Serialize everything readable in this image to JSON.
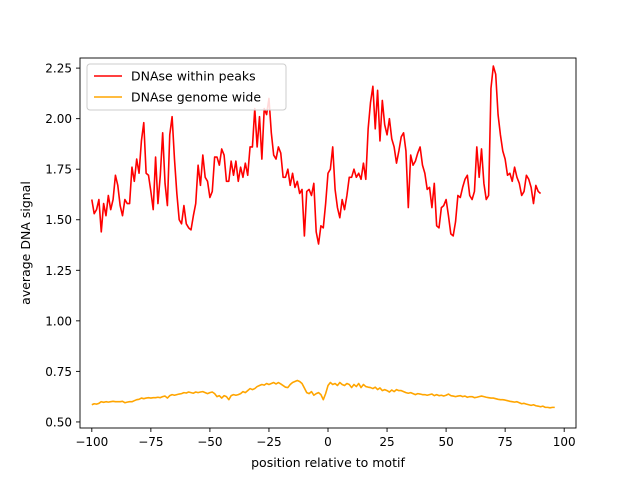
{
  "chart_data": {
    "type": "line",
    "title": "",
    "xlabel": "position relative to motif",
    "ylabel": "average DNA signal",
    "xlim": [
      -105,
      105
    ],
    "ylim": [
      0.47,
      2.3
    ],
    "xticks": [
      -100,
      -75,
      -50,
      -25,
      0,
      25,
      50,
      75,
      100
    ],
    "xtick_labels": [
      "−100",
      "−75",
      "−50",
      "−25",
      "0",
      "25",
      "50",
      "75",
      "100"
    ],
    "yticks": [
      0.5,
      0.75,
      1.0,
      1.25,
      1.5,
      1.75,
      2.0,
      2.25
    ],
    "ytick_labels": [
      "0.50",
      "0.75",
      "1.00",
      "1.25",
      "1.50",
      "1.75",
      "2.00",
      "2.25"
    ],
    "grid": false,
    "legend_position": "upper-left",
    "x_start": -100,
    "x_step": 1,
    "series": [
      {
        "name": "DNAse within peaks",
        "color": "#ff0000",
        "values": [
          1.6,
          1.53,
          1.55,
          1.6,
          1.44,
          1.58,
          1.52,
          1.62,
          1.55,
          1.6,
          1.72,
          1.67,
          1.57,
          1.52,
          1.6,
          1.58,
          1.58,
          1.76,
          1.69,
          1.8,
          1.73,
          1.89,
          1.98,
          1.73,
          1.72,
          1.64,
          1.55,
          1.81,
          1.58,
          1.72,
          1.93,
          1.68,
          1.57,
          1.92,
          2.01,
          1.8,
          1.63,
          1.5,
          1.48,
          1.57,
          1.48,
          1.46,
          1.45,
          1.52,
          1.58,
          1.77,
          1.67,
          1.82,
          1.71,
          1.69,
          1.61,
          1.64,
          1.81,
          1.81,
          1.77,
          1.85,
          1.82,
          1.69,
          1.69,
          1.79,
          1.72,
          1.79,
          1.69,
          1.76,
          1.71,
          1.78,
          1.72,
          1.86,
          1.86,
          2.05,
          1.86,
          2.01,
          1.8,
          2.05,
          2.02,
          2.1,
          1.93,
          1.82,
          1.8,
          1.86,
          1.83,
          1.71,
          1.71,
          1.75,
          1.67,
          1.73,
          1.66,
          1.69,
          1.63,
          1.65,
          1.42,
          1.64,
          1.65,
          1.62,
          1.68,
          1.44,
          1.38,
          1.47,
          1.46,
          1.58,
          1.73,
          1.75,
          1.86,
          1.65,
          1.56,
          1.51,
          1.6,
          1.55,
          1.62,
          1.71,
          1.71,
          1.75,
          1.71,
          1.73,
          1.7,
          1.78,
          1.7,
          1.95,
          2.08,
          2.16,
          1.95,
          2.14,
          1.89,
          2.09,
          1.97,
          1.92,
          2.0,
          1.9,
          1.86,
          1.78,
          1.84,
          1.91,
          1.93,
          1.84,
          1.56,
          1.82,
          1.77,
          1.79,
          1.83,
          1.86,
          1.77,
          1.73,
          1.65,
          1.66,
          1.56,
          1.68,
          1.47,
          1.46,
          1.56,
          1.57,
          1.6,
          1.52,
          1.43,
          1.42,
          1.49,
          1.62,
          1.61,
          1.66,
          1.7,
          1.72,
          1.62,
          1.6,
          1.64,
          1.86,
          1.71,
          1.85,
          1.68,
          1.6,
          1.62,
          2.15,
          2.26,
          2.22,
          2.02,
          1.92,
          1.84,
          1.8,
          1.72,
          1.73,
          1.69,
          1.76,
          1.71,
          1.68,
          1.62,
          1.64,
          1.72,
          1.7,
          1.66,
          1.58,
          1.67,
          1.64,
          1.63
        ]
      },
      {
        "name": "DNAse genome wide",
        "color": "#ffa500",
        "values": [
          0.585,
          0.59,
          0.588,
          0.592,
          0.6,
          0.597,
          0.6,
          0.598,
          0.6,
          0.602,
          0.6,
          0.6,
          0.6,
          0.602,
          0.595,
          0.598,
          0.6,
          0.6,
          0.605,
          0.61,
          0.612,
          0.618,
          0.615,
          0.618,
          0.62,
          0.618,
          0.62,
          0.62,
          0.622,
          0.62,
          0.625,
          0.628,
          0.618,
          0.63,
          0.635,
          0.632,
          0.635,
          0.638,
          0.64,
          0.645,
          0.643,
          0.648,
          0.645,
          0.642,
          0.648,
          0.645,
          0.648,
          0.65,
          0.645,
          0.64,
          0.645,
          0.648,
          0.64,
          0.625,
          0.63,
          0.618,
          0.63,
          0.625,
          0.61,
          0.63,
          0.635,
          0.632,
          0.635,
          0.64,
          0.65,
          0.645,
          0.655,
          0.665,
          0.66,
          0.665,
          0.675,
          0.68,
          0.685,
          0.682,
          0.69,
          0.685,
          0.69,
          0.695,
          0.688,
          0.695,
          0.688,
          0.68,
          0.672,
          0.67,
          0.685,
          0.695,
          0.7,
          0.705,
          0.7,
          0.69,
          0.668,
          0.645,
          0.64,
          0.65,
          0.632,
          0.64,
          0.645,
          0.635,
          0.61,
          0.64,
          0.68,
          0.695,
          0.685,
          0.69,
          0.68,
          0.695,
          0.685,
          0.68,
          0.69,
          0.685,
          0.67,
          0.685,
          0.675,
          0.69,
          0.67,
          0.685,
          0.675,
          0.672,
          0.67,
          0.665,
          0.672,
          0.66,
          0.668,
          0.655,
          0.66,
          0.655,
          0.648,
          0.658,
          0.65,
          0.66,
          0.655,
          0.655,
          0.65,
          0.645,
          0.642,
          0.645,
          0.64,
          0.635,
          0.64,
          0.638,
          0.635,
          0.635,
          0.632,
          0.635,
          0.638,
          0.63,
          0.635,
          0.63,
          0.632,
          0.628,
          0.632,
          0.638,
          0.63,
          0.628,
          0.625,
          0.628,
          0.63,
          0.625,
          0.628,
          0.622,
          0.625,
          0.625,
          0.62,
          0.622,
          0.625,
          0.628,
          0.625,
          0.622,
          0.62,
          0.618,
          0.618,
          0.615,
          0.612,
          0.61,
          0.61,
          0.608,
          0.605,
          0.602,
          0.6,
          0.598,
          0.6,
          0.595,
          0.59,
          0.592,
          0.588,
          0.585,
          0.582,
          0.585,
          0.58,
          0.578,
          0.575,
          0.578,
          0.572,
          0.572,
          0.57,
          0.572,
          0.572
        ]
      }
    ]
  }
}
